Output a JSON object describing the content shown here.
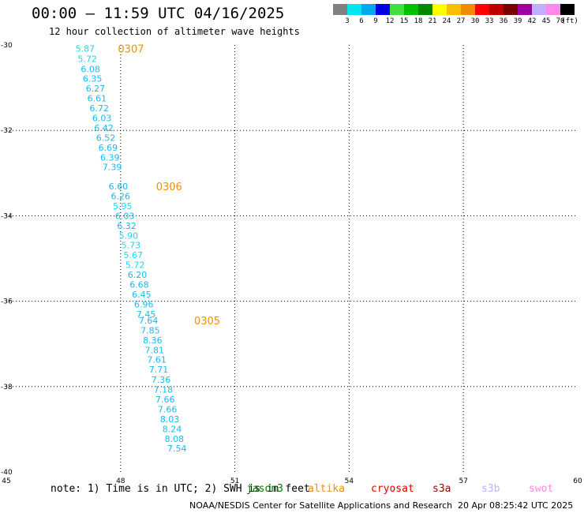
{
  "header": {
    "title": "00:00 – 11:59 UTC 04/16/2025",
    "subtitle": "12 hour collection of altimeter wave heights"
  },
  "colorbar": {
    "labels": [
      "3",
      "6",
      "9",
      "12",
      "15",
      "18",
      "21",
      "24",
      "27",
      "30",
      "33",
      "36",
      "39",
      "42",
      "45",
      "70"
    ],
    "unit": "(ft)",
    "colors": [
      "#808080",
      "#00e5ee",
      "#00a8f0",
      "#0000e6",
      "#40e040",
      "#00c000",
      "#008800",
      "#ffff00",
      "#f7c000",
      "#f08c00",
      "#ff0000",
      "#c00000",
      "#7a0000",
      "#a000a0",
      "#c0b0ff",
      "#ff88e8",
      "#000000"
    ]
  },
  "chart_data": {
    "type": "scatter",
    "title": "",
    "xlim": [
      45,
      60
    ],
    "ylim": [
      -40,
      -30
    ],
    "xticks": [
      "45",
      "48",
      "51",
      "54",
      "57",
      "60"
    ],
    "yticks": [
      "-30",
      "-32",
      "-34",
      "-36",
      "-38",
      "-40"
    ],
    "grid": true,
    "points": [
      {
        "x": 47.07,
        "y": -30.08,
        "v": "5.87",
        "c": "#18d8f0"
      },
      {
        "x": 47.13,
        "y": -30.32,
        "v": "5.72",
        "c": "#18d8f0"
      },
      {
        "x": 47.21,
        "y": -30.56,
        "v": "6.08",
        "c": "#18b8f0"
      },
      {
        "x": 47.26,
        "y": -30.79,
        "v": "6.35",
        "c": "#18b8f0"
      },
      {
        "x": 47.34,
        "y": -31.02,
        "v": "6.27",
        "c": "#18b8f0"
      },
      {
        "x": 47.38,
        "y": -31.25,
        "v": "6.61",
        "c": "#18b8f0"
      },
      {
        "x": 47.44,
        "y": -31.48,
        "v": "6.72",
        "c": "#18b8f0"
      },
      {
        "x": 47.51,
        "y": -31.71,
        "v": "6.03",
        "c": "#18b8f0"
      },
      {
        "x": 47.56,
        "y": -31.94,
        "v": "6.42",
        "c": "#18b8f0"
      },
      {
        "x": 47.61,
        "y": -32.17,
        "v": "6.52",
        "c": "#18b8f0"
      },
      {
        "x": 47.67,
        "y": -32.4,
        "v": "6.69",
        "c": "#18b8f0"
      },
      {
        "x": 47.72,
        "y": -32.63,
        "v": "6.39",
        "c": "#18b8f0"
      },
      {
        "x": 47.78,
        "y": -32.86,
        "v": "7.39",
        "c": "#18b8f0"
      },
      {
        "x": 47.94,
        "y": -33.31,
        "v": "6.60",
        "c": "#18b8f0"
      },
      {
        "x": 48.0,
        "y": -33.54,
        "v": "6.26",
        "c": "#18b8f0"
      },
      {
        "x": 48.05,
        "y": -33.77,
        "v": "5.95",
        "c": "#18d8f0"
      },
      {
        "x": 48.11,
        "y": -34.0,
        "v": "6.03",
        "c": "#18b8f0"
      },
      {
        "x": 48.16,
        "y": -34.23,
        "v": "6.32",
        "c": "#18b8f0"
      },
      {
        "x": 48.21,
        "y": -34.46,
        "v": "5.90",
        "c": "#18d8f0"
      },
      {
        "x": 48.27,
        "y": -34.69,
        "v": "5.73",
        "c": "#18d8f0"
      },
      {
        "x": 48.33,
        "y": -34.92,
        "v": "5.67",
        "c": "#18d8f0"
      },
      {
        "x": 48.38,
        "y": -35.15,
        "v": "5.72",
        "c": "#18d8f0"
      },
      {
        "x": 48.44,
        "y": -35.38,
        "v": "6.20",
        "c": "#18b8f0"
      },
      {
        "x": 48.49,
        "y": -35.61,
        "v": "6.68",
        "c": "#18b8f0"
      },
      {
        "x": 48.55,
        "y": -35.84,
        "v": "6.45",
        "c": "#18b8f0"
      },
      {
        "x": 48.61,
        "y": -36.07,
        "v": "6.96",
        "c": "#18b8f0"
      },
      {
        "x": 48.67,
        "y": -36.3,
        "v": "7.45",
        "c": "#18b8f0"
      },
      {
        "x": 48.73,
        "y": -36.45,
        "v": "7.64",
        "c": "#18b8f0"
      },
      {
        "x": 48.78,
        "y": -36.68,
        "v": "7.85",
        "c": "#18b8f0"
      },
      {
        "x": 48.84,
        "y": -36.91,
        "v": "8.36",
        "c": "#18b8f0"
      },
      {
        "x": 48.89,
        "y": -37.14,
        "v": "7.81",
        "c": "#18b8f0"
      },
      {
        "x": 48.95,
        "y": -37.37,
        "v": "7.61",
        "c": "#18b8f0"
      },
      {
        "x": 49.0,
        "y": -37.6,
        "v": "7.71",
        "c": "#18b8f0"
      },
      {
        "x": 49.06,
        "y": -37.84,
        "v": "7.36",
        "c": "#18b8f0"
      },
      {
        "x": 49.12,
        "y": -38.07,
        "v": "7.18",
        "c": "#18b8f0"
      },
      {
        "x": 49.17,
        "y": -38.3,
        "v": "7.66",
        "c": "#18b8f0"
      },
      {
        "x": 49.23,
        "y": -38.53,
        "v": "7.66",
        "c": "#18b8f0"
      },
      {
        "x": 49.29,
        "y": -38.76,
        "v": "8.03",
        "c": "#18b8f0"
      },
      {
        "x": 49.35,
        "y": -38.99,
        "v": "8.24",
        "c": "#18b8f0"
      },
      {
        "x": 49.41,
        "y": -39.22,
        "v": "8.08",
        "c": "#18b8f0"
      },
      {
        "x": 49.48,
        "y": -39.45,
        "v": "7.54",
        "c": "#18b8f0"
      }
    ],
    "annotations": [
      {
        "x": 47.93,
        "y": -30.08,
        "text": "0307",
        "c": "#f09000"
      },
      {
        "x": 48.93,
        "y": -33.31,
        "text": "0306",
        "c": "#f09000"
      },
      {
        "x": 49.93,
        "y": -36.45,
        "text": "0305",
        "c": "#f09000"
      }
    ]
  },
  "footer": {
    "note": "note: 1) Time is in UTC; 2) SWH is in feet",
    "satellites": [
      {
        "name": "jason3",
        "color": "#008000"
      },
      {
        "name": "altika",
        "color": "#f09000"
      },
      {
        "name": "cryosat",
        "color": "#e00000"
      },
      {
        "name": "s3a",
        "color": "#a00000"
      },
      {
        "name": "s3b",
        "color": "#c0b0ff"
      },
      {
        "name": "swot",
        "color": "#ff88e8"
      }
    ],
    "credit": "NOAA/NESDIS Center for Satellite Applications and Research",
    "timestamp": "20 Apr 08:25:42 UTC 2025"
  }
}
